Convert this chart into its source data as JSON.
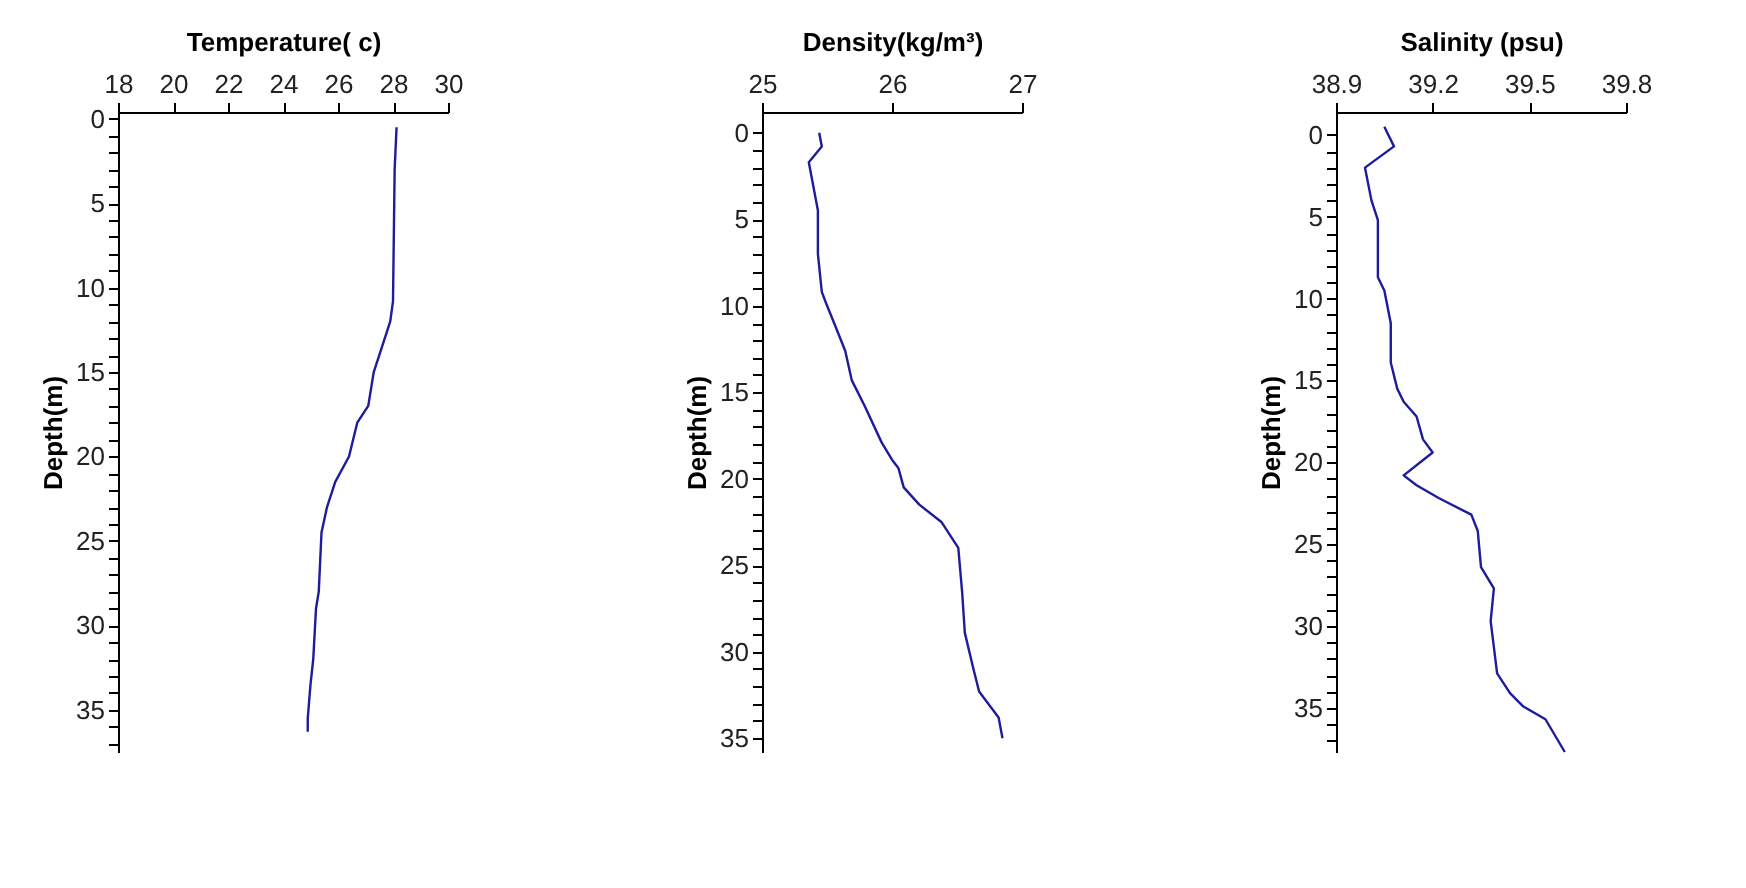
{
  "chart_data": [
    {
      "type": "line",
      "xlabel": "Temperature( c)",
      "ylabel": "Depth(m)",
      "color": "#1c1c9c",
      "x": [
        28.13,
        28.06,
        28.0,
        27.9,
        27.7,
        27.3,
        27.1,
        26.7,
        26.4,
        25.9,
        25.6,
        25.4,
        25.3,
        25.2,
        25.1,
        25.0,
        24.9,
        24.9
      ],
      "values": [
        0.5,
        3,
        10.8,
        12,
        13,
        15,
        17,
        18,
        20,
        21.5,
        23,
        24.5,
        28,
        29,
        32,
        33.5,
        35.5,
        36.3
      ],
      "xlim": [
        18,
        30
      ],
      "xticks": [
        18,
        20,
        22,
        24,
        26,
        28,
        30
      ],
      "ylim": [
        37.5,
        -0.4
      ],
      "yticks": [
        0,
        {
          "value": 1,
          "label": null
        },
        {
          "value": 2,
          "label": null
        },
        {
          "value": 3,
          "label": null
        },
        {
          "value": 4,
          "label": null
        },
        5,
        {
          "value": 6,
          "label": null
        },
        {
          "value": 7,
          "label": null
        },
        {
          "value": 8,
          "label": null
        },
        {
          "value": 9,
          "label": null
        },
        10,
        {
          "value": 11,
          "label": null
        },
        {
          "value": 12,
          "label": null
        },
        {
          "value": 13,
          "label": null
        },
        {
          "value": 14,
          "label": null
        },
        15,
        {
          "value": 16,
          "label": null
        },
        {
          "value": 17,
          "label": null
        },
        {
          "value": 18,
          "label": null
        },
        {
          "value": 19,
          "label": null
        },
        20,
        {
          "value": 21,
          "label": null
        },
        {
          "value": 22,
          "label": null
        },
        {
          "value": 23,
          "label": null
        },
        {
          "value": 24,
          "label": null
        },
        25,
        {
          "value": 26,
          "label": null
        },
        {
          "value": 27,
          "label": null
        },
        {
          "value": 28,
          "label": null
        },
        {
          "value": 29,
          "label": null
        },
        30,
        {
          "value": 31,
          "label": null
        },
        {
          "value": 32,
          "label": null
        },
        {
          "value": 33,
          "label": null
        },
        {
          "value": 34,
          "label": null
        },
        35,
        {
          "value": 36,
          "label": null
        },
        {
          "value": 37,
          "label": null
        }
      ]
    },
    {
      "type": "line",
      "xlabel": "Density(kg/m³)",
      "ylabel": "Depth(m)",
      "color": "#1c1c9c",
      "x": [
        25.44,
        25.46,
        25.36,
        25.38,
        25.43,
        25.43,
        25.46,
        25.49,
        25.56,
        25.64,
        25.69,
        25.79,
        25.92,
        26.0,
        26.05,
        26.09,
        26.21,
        26.38,
        26.51,
        26.54,
        26.56,
        26.62,
        26.67,
        26.82,
        26.85
      ],
      "values": [
        0,
        0.8,
        1.7,
        2.5,
        4.5,
        7,
        9.2,
        9.8,
        11.1,
        12.6,
        14.3,
        15.8,
        17.9,
        18.9,
        19.4,
        20.5,
        21.5,
        22.5,
        24.0,
        26.6,
        28.9,
        30.8,
        32.3,
        33.8,
        35.0
      ],
      "xlim": [
        25,
        27
      ],
      "xticks": [
        25,
        26,
        27
      ],
      "ylim": [
        35.8,
        -1.2
      ],
      "yticks": [
        0,
        {
          "value": 1,
          "label": null
        },
        {
          "value": 2,
          "label": null
        },
        {
          "value": 3,
          "label": null
        },
        {
          "value": 4,
          "label": null
        },
        5,
        {
          "value": 6,
          "label": null
        },
        {
          "value": 7,
          "label": null
        },
        {
          "value": 8,
          "label": null
        },
        {
          "value": 9,
          "label": null
        },
        10,
        {
          "value": 11,
          "label": null
        },
        {
          "value": 12,
          "label": null
        },
        {
          "value": 13,
          "label": null
        },
        {
          "value": 14,
          "label": null
        },
        15,
        {
          "value": 16,
          "label": null
        },
        {
          "value": 17,
          "label": null
        },
        {
          "value": 18,
          "label": null
        },
        {
          "value": 19,
          "label": null
        },
        20,
        {
          "value": 21,
          "label": null
        },
        {
          "value": 22,
          "label": null
        },
        {
          "value": 23,
          "label": null
        },
        {
          "value": 24,
          "label": null
        },
        25,
        {
          "value": 26,
          "label": null
        },
        {
          "value": 27,
          "label": null
        },
        {
          "value": 28,
          "label": null
        },
        {
          "value": 29,
          "label": null
        },
        30,
        {
          "value": 31,
          "label": null
        },
        {
          "value": 32,
          "label": null
        },
        {
          "value": 33,
          "label": null
        },
        {
          "value": 34,
          "label": null
        },
        35
      ]
    },
    {
      "type": "line",
      "xlabel": "Salinity (psu)",
      "ylabel": "Depth(m)",
      "color": "#1c1c9c",
      "x": [
        39.05,
        39.08,
        38.99,
        39.01,
        39.03,
        39.03,
        39.05,
        39.07,
        39.07,
        39.09,
        39.11,
        39.15,
        39.17,
        39.2,
        39.11,
        39.15,
        39.22,
        39.32,
        39.34,
        39.35,
        39.39,
        39.38,
        39.4,
        39.44,
        39.48,
        39.55,
        39.61
      ],
      "values": [
        -0.5,
        0.7,
        2.0,
        4.0,
        5.2,
        8.7,
        9.5,
        11.5,
        13.9,
        15.5,
        16.3,
        17.2,
        18.6,
        19.4,
        20.8,
        21.4,
        22.2,
        23.2,
        24.2,
        26.4,
        27.7,
        29.7,
        32.9,
        34.1,
        34.9,
        35.7,
        37.7
      ],
      "xlim": [
        38.9,
        39.8
      ],
      "xticks": [
        38.9,
        39.2,
        39.5,
        39.8
      ],
      "ylim": [
        37.7,
        -1.4
      ],
      "yticks": [
        0,
        {
          "value": 1,
          "label": null
        },
        {
          "value": 2,
          "label": null
        },
        {
          "value": 3,
          "label": null
        },
        {
          "value": 4,
          "label": null
        },
        5,
        {
          "value": 6,
          "label": null
        },
        {
          "value": 7,
          "label": null
        },
        {
          "value": 8,
          "label": null
        },
        {
          "value": 9,
          "label": null
        },
        10,
        {
          "value": 11,
          "label": null
        },
        {
          "value": 12,
          "label": null
        },
        {
          "value": 13,
          "label": null
        },
        {
          "value": 14,
          "label": null
        },
        15,
        {
          "value": 16,
          "label": null
        },
        {
          "value": 17,
          "label": null
        },
        {
          "value": 18,
          "label": null
        },
        {
          "value": 19,
          "label": null
        },
        20,
        {
          "value": 21,
          "label": null
        },
        {
          "value": 22,
          "label": null
        },
        {
          "value": 23,
          "label": null
        },
        {
          "value": 24,
          "label": null
        },
        25,
        {
          "value": 26,
          "label": null
        },
        {
          "value": 27,
          "label": null
        },
        {
          "value": 28,
          "label": null
        },
        {
          "value": 29,
          "label": null
        },
        30,
        {
          "value": 31,
          "label": null
        },
        {
          "value": 32,
          "label": null
        },
        {
          "value": 33,
          "label": null
        },
        {
          "value": 34,
          "label": null
        },
        35,
        {
          "value": 36,
          "label": null
        },
        {
          "value": 37,
          "label": null
        }
      ]
    }
  ]
}
